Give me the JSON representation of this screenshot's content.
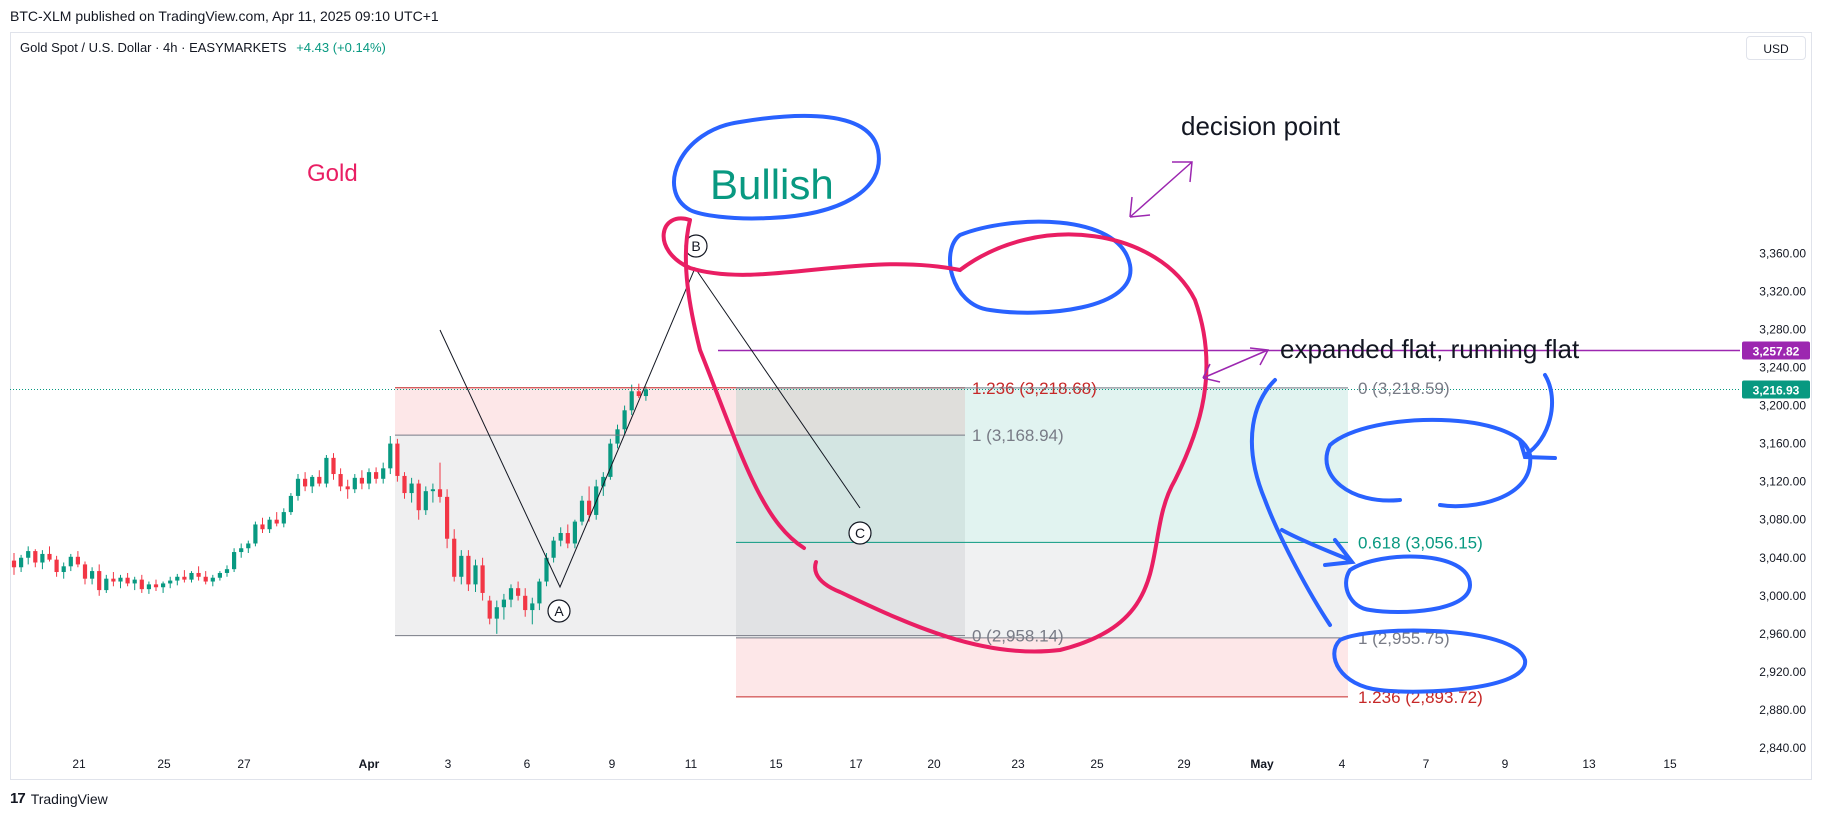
{
  "header": {
    "published": "BTC-XLM published on TradingView.com, Apr 11, 2025 09:10 UTC+1",
    "symbol": "Gold Spot / U.S. Dollar · 4h · EASYMARKETS",
    "change": "+4.43 (+0.14%)",
    "currency": "USD"
  },
  "footer": {
    "brand": "TradingView"
  },
  "chart_data": {
    "type": "candlestick",
    "y_axis": {
      "ylim": [
        2815,
        3385
      ],
      "ticks": [
        2840,
        2880,
        2920,
        2960,
        3000,
        3040,
        3080,
        3120,
        3160,
        3200,
        3240,
        3280,
        3320,
        3360
      ],
      "tick_labels": [
        "2,840.00",
        "2,880.00",
        "2,920.00",
        "2,960.00",
        "3,000.00",
        "3,040.00",
        "3,080.00",
        "3,120.00",
        "3,160.00",
        "3,200.00",
        "3,240.00",
        "3,280.00",
        "3,320.00",
        "3,360.00"
      ],
      "badges": [
        {
          "label": "3,257.82",
          "value": 3257.82,
          "color": "#9c27b0"
        },
        {
          "label": "3,216.93",
          "value": 3216.93,
          "color": "#089981"
        }
      ]
    },
    "x_axis": {
      "tick_labels": [
        "21",
        "25",
        "27",
        "Apr",
        "3",
        "6",
        "9",
        "11",
        "15",
        "17",
        "20",
        "23",
        "25",
        "29",
        "May",
        "4",
        "7",
        "9",
        "13",
        "15"
      ]
    },
    "candles": [
      [
        3037,
        3045,
        3022,
        3030
      ],
      [
        3030,
        3043,
        3025,
        3040
      ],
      [
        3040,
        3052,
        3033,
        3047
      ],
      [
        3047,
        3049,
        3030,
        3035
      ],
      [
        3035,
        3048,
        3028,
        3044
      ],
      [
        3044,
        3052,
        3036,
        3038
      ],
      [
        3038,
        3042,
        3020,
        3025
      ],
      [
        3025,
        3035,
        3018,
        3031
      ],
      [
        3031,
        3044,
        3026,
        3041
      ],
      [
        3041,
        3047,
        3030,
        3033
      ],
      [
        3033,
        3036,
        3012,
        3018
      ],
      [
        3018,
        3030,
        3012,
        3026
      ],
      [
        3026,
        3033,
        3000,
        3006
      ],
      [
        3006,
        3022,
        3003,
        3018
      ],
      [
        3018,
        3025,
        3010,
        3015
      ],
      [
        3015,
        3022,
        3008,
        3019
      ],
      [
        3019,
        3024,
        3010,
        3013
      ],
      [
        3013,
        3020,
        3006,
        3017
      ],
      [
        3017,
        3022,
        3003,
        3007
      ],
      [
        3007,
        3015,
        3002,
        3012
      ],
      [
        3012,
        3017,
        3005,
        3009
      ],
      [
        3009,
        3015,
        3003,
        3013
      ],
      [
        3013,
        3020,
        3008,
        3016
      ],
      [
        3016,
        3023,
        3011,
        3020
      ],
      [
        3020,
        3027,
        3014,
        3017
      ],
      [
        3017,
        3026,
        3014,
        3024
      ],
      [
        3024,
        3031,
        3016,
        3020
      ],
      [
        3020,
        3026,
        3012,
        3015
      ],
      [
        3015,
        3022,
        3010,
        3019
      ],
      [
        3019,
        3026,
        3016,
        3024
      ],
      [
        3024,
        3032,
        3020,
        3028
      ],
      [
        3028,
        3050,
        3025,
        3046
      ],
      [
        3046,
        3055,
        3040,
        3050
      ],
      [
        3050,
        3058,
        3045,
        3055
      ],
      [
        3055,
        3078,
        3052,
        3075
      ],
      [
        3075,
        3082,
        3066,
        3070
      ],
      [
        3070,
        3083,
        3066,
        3080
      ],
      [
        3080,
        3088,
        3073,
        3076
      ],
      [
        3076,
        3092,
        3072,
        3088
      ],
      [
        3088,
        3108,
        3085,
        3105
      ],
      [
        3105,
        3128,
        3100,
        3123
      ],
      [
        3123,
        3130,
        3110,
        3115
      ],
      [
        3115,
        3127,
        3108,
        3125
      ],
      [
        3125,
        3132,
        3115,
        3118
      ],
      [
        3118,
        3148,
        3114,
        3145
      ],
      [
        3145,
        3150,
        3122,
        3128
      ],
      [
        3128,
        3134,
        3110,
        3115
      ],
      [
        3115,
        3122,
        3102,
        3112
      ],
      [
        3112,
        3128,
        3108,
        3124
      ],
      [
        3124,
        3132,
        3112,
        3118
      ],
      [
        3118,
        3134,
        3112,
        3130
      ],
      [
        3130,
        3135,
        3118,
        3123
      ],
      [
        3123,
        3140,
        3118,
        3134
      ],
      [
        3134,
        3168,
        3128,
        3160
      ],
      [
        3160,
        3165,
        3120,
        3126
      ],
      [
        3126,
        3130,
        3102,
        3108
      ],
      [
        3108,
        3124,
        3098,
        3118
      ],
      [
        3118,
        3122,
        3080,
        3090
      ],
      [
        3090,
        3115,
        3085,
        3110
      ],
      [
        3110,
        3118,
        3098,
        3112
      ],
      [
        3112,
        3140,
        3098,
        3104
      ],
      [
        3104,
        3112,
        3050,
        3060
      ],
      [
        3060,
        3070,
        3015,
        3020
      ],
      [
        3020,
        3048,
        3012,
        3042
      ],
      [
        3042,
        3048,
        3005,
        3012
      ],
      [
        3012,
        3038,
        3004,
        3032
      ],
      [
        3032,
        3040,
        2995,
        3003
      ],
      [
        2995,
        3000,
        2970,
        2976
      ],
      [
        2976,
        2995,
        2960,
        2988
      ],
      [
        2988,
        3002,
        2975,
        2996
      ],
      [
        2996,
        3012,
        2988,
        3008
      ],
      [
        3008,
        3015,
        2995,
        3000
      ],
      [
        3000,
        3008,
        2978,
        2985
      ],
      [
        2985,
        2998,
        2970,
        2992
      ],
      [
        2992,
        3018,
        2985,
        3015
      ],
      [
        3015,
        3045,
        3010,
        3040
      ],
      [
        3040,
        3062,
        3035,
        3058
      ],
      [
        3058,
        3072,
        3052,
        3066
      ],
      [
        3066,
        3075,
        3050,
        3055
      ],
      [
        3055,
        3080,
        3050,
        3078
      ],
      [
        3078,
        3105,
        3074,
        3100
      ],
      [
        3100,
        3115,
        3078,
        3085
      ],
      [
        3085,
        3122,
        3080,
        3115
      ],
      [
        3115,
        3130,
        3105,
        3125
      ],
      [
        3125,
        3165,
        3122,
        3160
      ],
      [
        3160,
        3180,
        3155,
        3175
      ],
      [
        3175,
        3200,
        3170,
        3195
      ],
      [
        3195,
        3222,
        3190,
        3215
      ],
      [
        3215,
        3223,
        3208,
        3210
      ],
      [
        3210,
        3220,
        3205,
        3217
      ]
    ],
    "fib_levels": [
      {
        "label": "1.236 (3,218.68)",
        "value": 3218.68,
        "color": "#c62828"
      },
      {
        "label": "1 (3,168.94)",
        "value": 3168.94,
        "color": "#787b86"
      },
      {
        "label": "0 (2,958.14)",
        "value": 2958.14,
        "color": "#787b86"
      },
      {
        "label": "0 (3,218.59)",
        "value": 3218.59,
        "color": "#787b86"
      },
      {
        "label": "0.618 (3,056.15)",
        "value": 3056.15,
        "color": "#089981"
      },
      {
        "label": "1 (2,955.75)",
        "value": 2955.75,
        "color": "#787b86"
      },
      {
        "label": "1.236 (2,893.72)",
        "value": 2893.72,
        "color": "#c62828"
      }
    ],
    "horizontal_line": {
      "value": 3257.82,
      "color": "#9c27b0"
    },
    "wave_labels": [
      "A",
      "B",
      "C"
    ],
    "annotations": [
      "Gold",
      "Bullish",
      "decision point",
      "expanded flat, running flat"
    ],
    "colors": {
      "up": "#089981",
      "down": "#f23645",
      "accent": "#2962ff",
      "annotation_pink": "#e91e63"
    }
  }
}
